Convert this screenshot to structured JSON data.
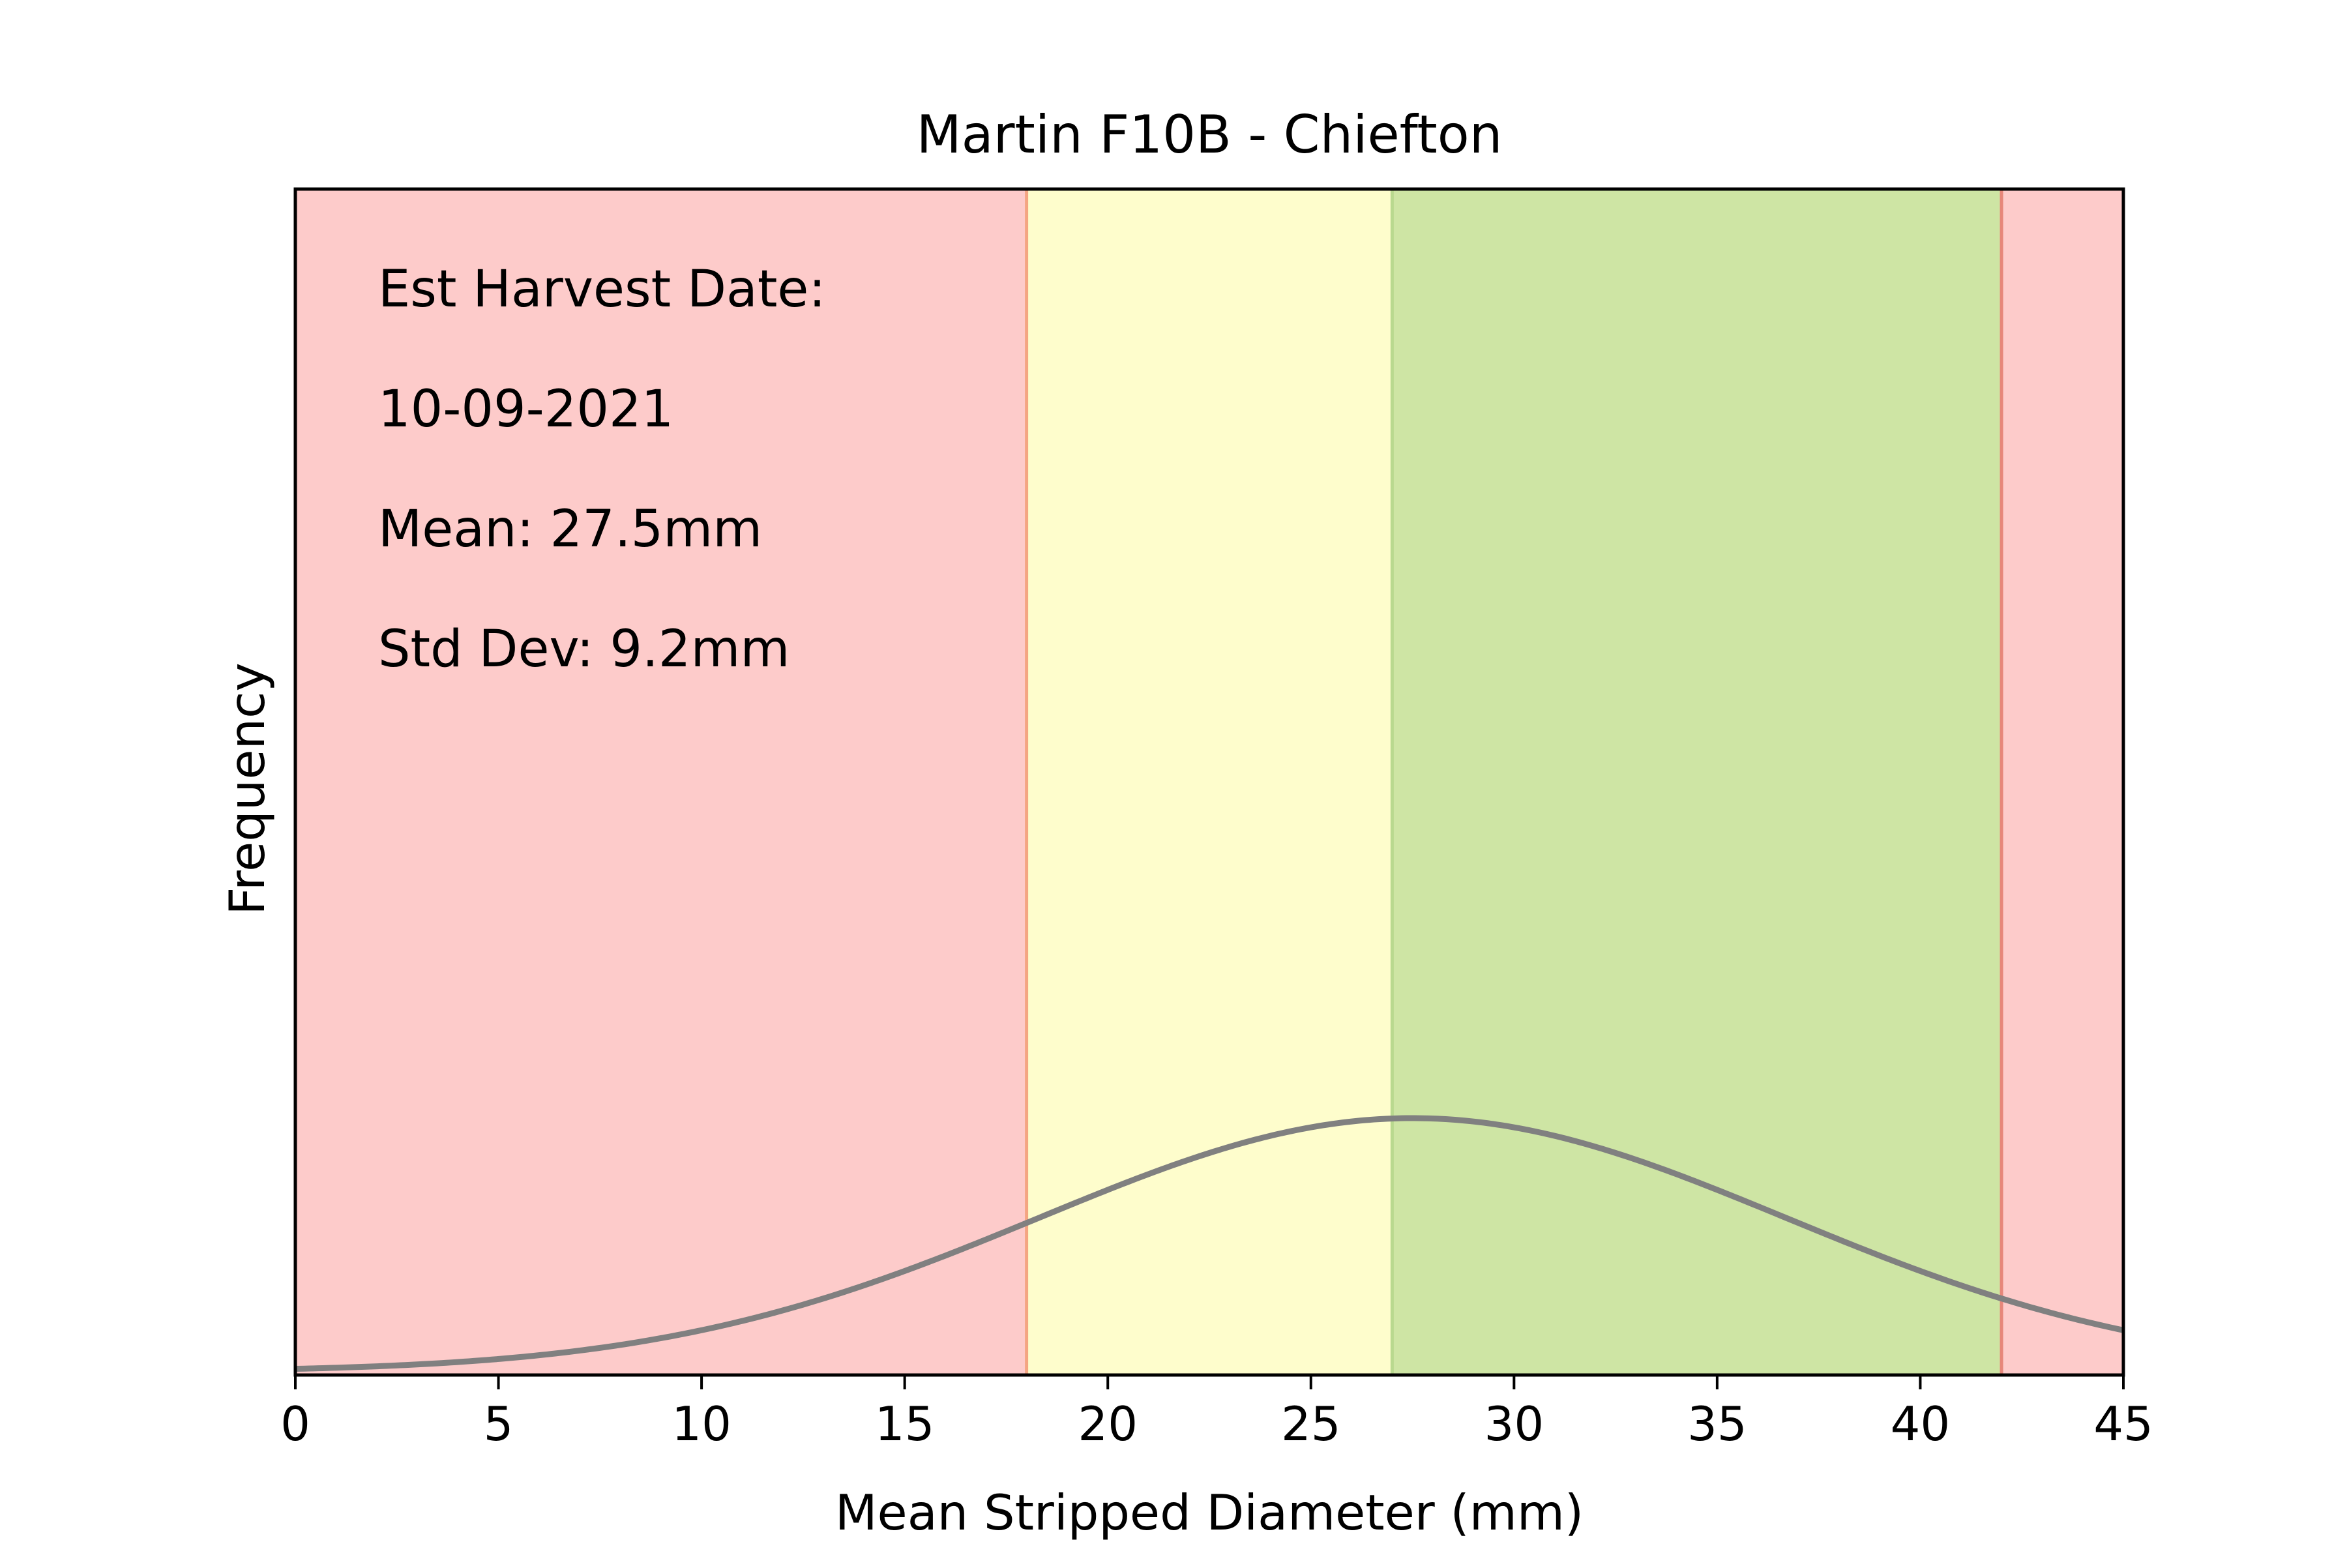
{
  "chart_data": {
    "type": "line",
    "title": "Martin F10B - Chiefton",
    "xlabel": "Mean Stripped Diameter (mm)",
    "ylabel": "Frequency",
    "xlim": [
      0,
      45
    ],
    "xticks": [
      0,
      5,
      10,
      15,
      20,
      25,
      30,
      35,
      40,
      45
    ],
    "yticks": [],
    "grid": false,
    "legend": "none",
    "bands": [
      {
        "from": 0,
        "to": 18,
        "color": "#fdcbca",
        "edge_color": "#f4a582"
      },
      {
        "from": 18,
        "to": 27,
        "color": "#fefdcc",
        "edge_color": "#b9d98f"
      },
      {
        "from": 27,
        "to": 42,
        "color": "#cee5a4",
        "edge_color": "#e6877a"
      },
      {
        "from": 42,
        "to": 45,
        "color": "#fdcbca",
        "edge_color": "#e6877a"
      }
    ],
    "curve": {
      "distribution": "normal",
      "mean": 27.5,
      "std": 9.2,
      "color": "#808080"
    },
    "annotations": [
      "Est Harvest Date:",
      "10-09-2021",
      "Mean: 27.5mm",
      "Std Dev: 9.2mm"
    ]
  }
}
